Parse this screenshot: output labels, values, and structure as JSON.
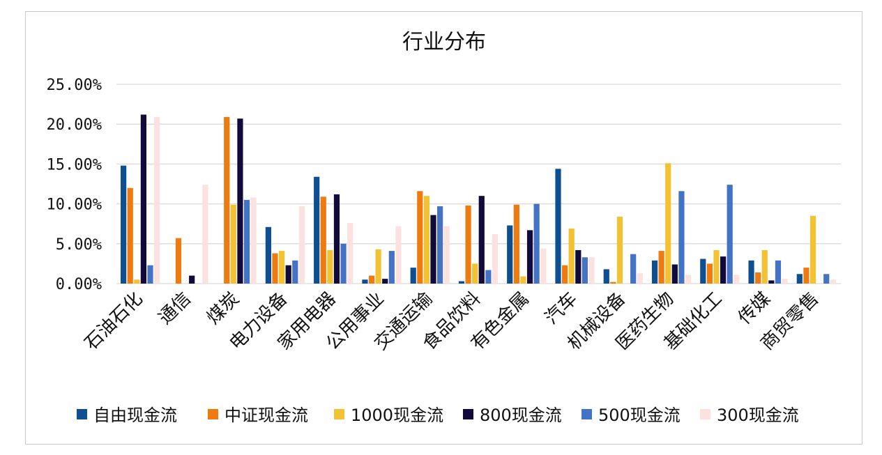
{
  "chart_data": {
    "type": "bar",
    "title": "行业分布",
    "xlabel": "",
    "ylabel": "",
    "ylim": [
      0,
      25
    ],
    "yticks": [
      "0.00%",
      "5.00%",
      "10.00%",
      "15.00%",
      "20.00%",
      "25.00%"
    ],
    "grid": true,
    "legend_position": "bottom",
    "categories": [
      "石油石化",
      "通信",
      "煤炭",
      "电力设备",
      "家用电器",
      "公用事业",
      "交通运输",
      "食品饮料",
      "有色金属",
      "汽车",
      "机械设备",
      "医药生物",
      "基础化工",
      "传媒",
      "商贸零售"
    ],
    "series": [
      {
        "name": "自由现金流",
        "color": "#0e4f91",
        "values": [
          14.8,
          0,
          0,
          7.1,
          13.4,
          0.5,
          2.0,
          0.3,
          7.3,
          14.4,
          1.8,
          2.9,
          3.1,
          2.9,
          1.2
        ]
      },
      {
        "name": "中证现金流",
        "color": "#ee7b10",
        "values": [
          12.0,
          5.7,
          20.9,
          3.8,
          10.9,
          1.0,
          11.6,
          9.8,
          9.9,
          2.3,
          0.2,
          4.1,
          2.5,
          1.4,
          2.0
        ]
      },
      {
        "name": "1000现金流",
        "color": "#f2c233",
        "values": [
          0.5,
          0,
          9.9,
          4.1,
          4.2,
          4.3,
          11.0,
          2.5,
          0.9,
          6.9,
          8.4,
          15.1,
          4.2,
          4.2,
          8.5
        ]
      },
      {
        "name": "800现金流",
        "color": "#130a3c",
        "values": [
          21.2,
          1.0,
          20.7,
          2.3,
          11.2,
          0.6,
          8.6,
          11.0,
          6.7,
          4.2,
          0,
          2.4,
          3.4,
          0.4,
          0
        ]
      },
      {
        "name": "500现金流",
        "color": "#4472c4",
        "values": [
          2.3,
          0,
          10.5,
          2.9,
          5.0,
          4.1,
          9.7,
          1.7,
          10.0,
          3.3,
          3.7,
          11.6,
          12.4,
          2.9,
          1.2
        ]
      },
      {
        "name": "300现金流",
        "color": "#fbe2e1",
        "values": [
          20.9,
          12.4,
          10.8,
          9.7,
          7.6,
          7.2,
          7.2,
          6.2,
          4.4,
          3.3,
          1.3,
          1.1,
          1.1,
          0.6,
          0.5
        ]
      }
    ]
  }
}
